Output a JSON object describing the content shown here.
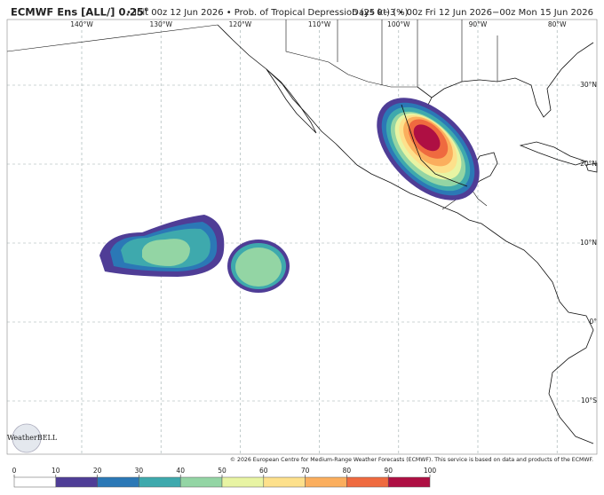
{
  "header": {
    "title": "ECMWF Ens [ALL/] 0.25°",
    "subtitle": "• Init 00z 12 Jun 2026 • Prob. of Tropical Depression (25 kt) (%)",
    "valid": "Days 0−3 • 00z Fri 12 Jun 2026−00z Mon 15 Jun 2026"
  },
  "map": {
    "longitude_labels": [
      "140°W",
      "130°W",
      "120°W",
      "110°W",
      "100°W",
      "90°W",
      "80°W"
    ],
    "latitude_labels": [
      "30°N",
      "20°N",
      "10°N",
      "0°",
      "10°S"
    ]
  },
  "colorbar": {
    "ticks": [
      0,
      10,
      20,
      30,
      40,
      50,
      60,
      70,
      80,
      90,
      100
    ],
    "colors": [
      "#ffffff",
      "#4f3d96",
      "#2b78b6",
      "#3ea9ad",
      "#93d5a4",
      "#e8f4a3",
      "#fde08b",
      "#fbae5d",
      "#ef6a3f",
      "#ae0f43"
    ]
  },
  "credit": "© 2026 European Centre for Medium-Range Weather Forecasts (ECMWF). This service is based on data and products of the ECMWF.",
  "logo": "WeatherBELL"
}
